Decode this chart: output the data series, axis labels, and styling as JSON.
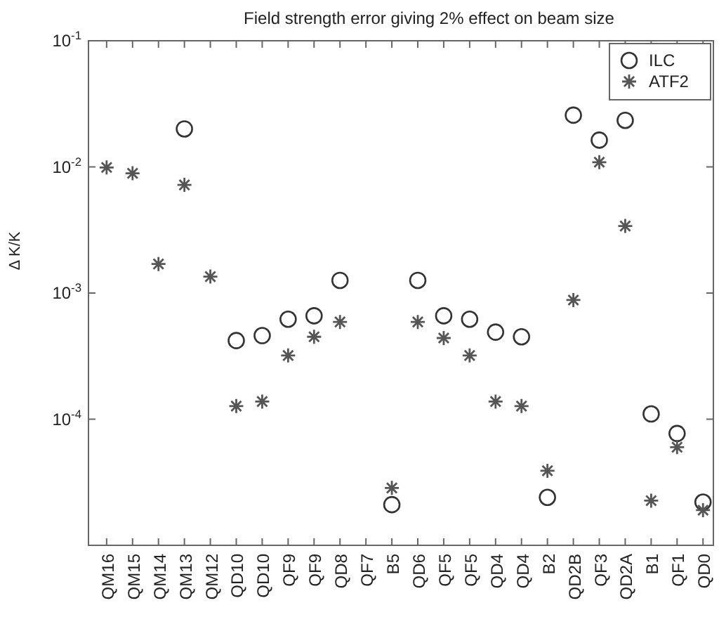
{
  "chart_data": {
    "type": "scatter",
    "title": "Field strength error giving 2% effect on beam size",
    "ylabel": "Δ K/K",
    "categories": [
      "QM16",
      "QM15",
      "QM14",
      "QM13",
      "QM12",
      "QD10",
      "QD10",
      "QF9",
      "QF9",
      "QD8",
      "QF7",
      "B5",
      "QD6",
      "QF5",
      "QF5",
      "QD4",
      "QD4",
      "B2",
      "QD2B",
      "QF3",
      "QD2A",
      "B1",
      "QF1",
      "QD0"
    ],
    "series": [
      {
        "name": "ILC",
        "color": "#333333",
        "marker": "circle",
        "values": [
          null,
          null,
          null,
          0.02,
          null,
          0.00042,
          0.00046,
          0.00062,
          0.00066,
          0.00126,
          null,
          2.1e-05,
          0.00126,
          0.00066,
          0.00062,
          0.00049,
          0.00045,
          2.4e-05,
          0.0257,
          0.0163,
          0.0234,
          0.00011,
          7.7e-05,
          2.2e-05
        ]
      },
      {
        "name": "ATF2",
        "color": "#555555",
        "marker": "cross",
        "values": [
          0.0099,
          0.0089,
          0.0017,
          0.0072,
          0.00135,
          0.000127,
          0.000138,
          0.00032,
          0.00045,
          0.00059,
          null,
          2.85e-05,
          0.00059,
          0.00044,
          0.00032,
          0.000138,
          0.000127,
          3.9e-05,
          0.00088,
          0.0109,
          0.0034,
          2.26e-05,
          6e-05,
          1.9e-05
        ]
      }
    ],
    "log": true,
    "ylim": [
      1e-05,
      0.1
    ],
    "yticks": [
      {
        "value": 1e-05,
        "label": null
      },
      {
        "value": 0.0001,
        "label": "10$^{-4}$"
      },
      {
        "value": 0.001,
        "label": "10$^{-3}$"
      },
      {
        "value": 0.01,
        "label": "10$^{-2}$"
      },
      {
        "value": 0.1,
        "label": "10$^{-1}$"
      }
    ],
    "grid": false,
    "legend": "top right"
  }
}
